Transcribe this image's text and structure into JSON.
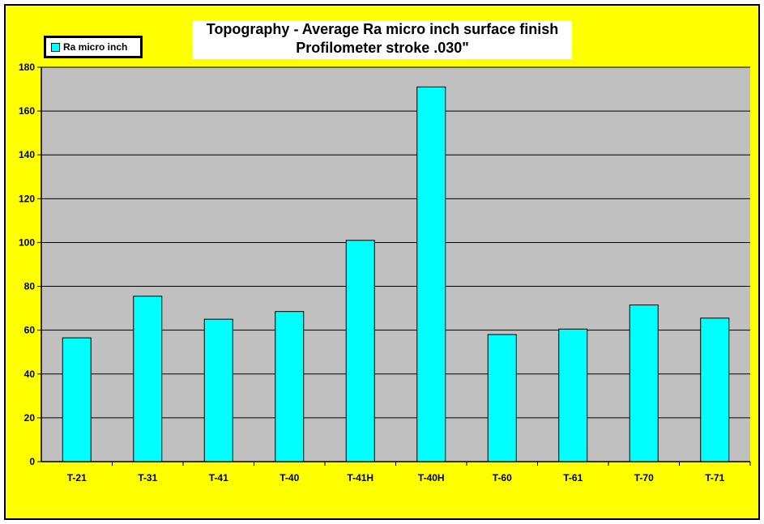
{
  "chart_data": {
    "type": "bar",
    "title": "Topography - Average Ra micro inch surface finish",
    "subtitle": "Profilometer stroke .030\"",
    "xlabel": "",
    "ylabel": "",
    "ylim": [
      0,
      180
    ],
    "yticks": [
      0,
      20,
      40,
      60,
      80,
      100,
      120,
      140,
      160,
      180
    ],
    "grid": true,
    "legend_position": "top-left",
    "categories": [
      "T-21",
      "T-31",
      "T-41",
      "T-40",
      "T-41H",
      "T-40H",
      "T-60",
      "T-61",
      "T-70",
      "T-71"
    ],
    "series": [
      {
        "name": "Ra micro inch",
        "color": "#00ffff",
        "values": [
          56.5,
          75.5,
          65,
          68.5,
          101,
          171,
          58,
          60.5,
          71.5,
          65.5
        ]
      }
    ],
    "colors": {
      "background": "#ffff00",
      "plot_area": "#c0c0c0",
      "bar": "#00ffff",
      "gridline": "#000000"
    }
  }
}
